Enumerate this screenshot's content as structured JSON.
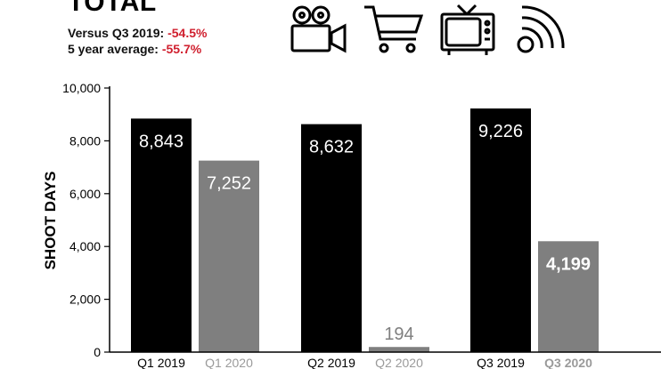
{
  "header": {
    "title": "TOTAL",
    "comparisons": [
      {
        "label": "Versus Q3 2019:",
        "value": "-54.5%"
      },
      {
        "label": "5 year average:",
        "value": "-55.7%"
      }
    ],
    "icons": [
      "film-camera-icon",
      "shopping-cart-icon",
      "television-icon",
      "broadcast-signal-icon"
    ],
    "accent_color": "#d0202f"
  },
  "chart_data": {
    "type": "bar",
    "ylabel": "SHOOT DAYS",
    "ylim": [
      0,
      10000
    ],
    "yticks": [
      "0",
      "2,000",
      "4,000",
      "6,000",
      "8,000",
      "10,000"
    ],
    "groups": [
      {
        "bars": [
          {
            "label": "Q1 2019",
            "value": 8843,
            "display": "8,843",
            "color": "#000000"
          },
          {
            "label": "Q1 2020",
            "value": 7252,
            "display": "7,252",
            "color": "#7f7f7f"
          }
        ]
      },
      {
        "bars": [
          {
            "label": "Q2 2019",
            "value": 8632,
            "display": "8,632",
            "color": "#000000"
          },
          {
            "label": "Q2 2020",
            "value": 194,
            "display": "194",
            "color": "#7f7f7f"
          }
        ]
      },
      {
        "bars": [
          {
            "label": "Q3 2019",
            "value": 9226,
            "display": "9,226",
            "color": "#000000"
          },
          {
            "label": "Q3 2020",
            "value": 4199,
            "display": "4,199",
            "color": "#7f7f7f",
            "highlight": true
          }
        ]
      }
    ],
    "grid": false
  }
}
